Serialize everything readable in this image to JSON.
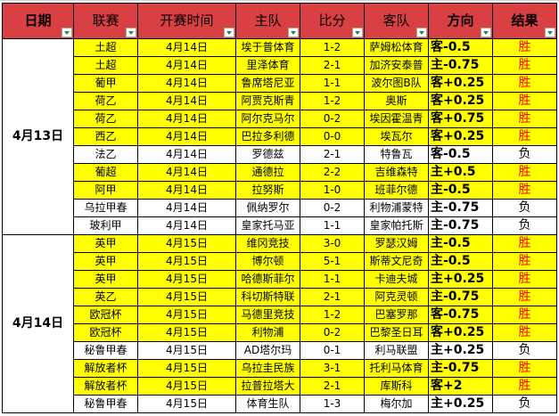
{
  "headers": [
    "日期",
    "联赛",
    "开赛时间",
    "主队",
    "比分",
    "客队",
    "方向",
    "结果"
  ],
  "colors": {
    "header": "#d94044",
    "highlight": "#ffff00",
    "win": "#ff0000"
  },
  "groups": [
    {
      "date": "4月13日",
      "rows": [
        {
          "league": "土超",
          "time": "4月14日",
          "home": "埃于普体育",
          "score": "1-2",
          "away": "萨姆松体育",
          "dir": "客-0.5",
          "result": "胜",
          "hl": true
        },
        {
          "league": "土超",
          "time": "4月14日",
          "home": "里泽体育",
          "score": "2-1",
          "away": "加济安泰普",
          "dir": "主-0.75",
          "result": "胜",
          "hl": true
        },
        {
          "league": "葡甲",
          "time": "4月14日",
          "home": "鲁席塔尼亚",
          "score": "1-1",
          "away": "波尔图B队",
          "dir": "客+0.25",
          "result": "胜",
          "hl": true
        },
        {
          "league": "荷乙",
          "time": "4月14日",
          "home": "阿贾克斯青",
          "score": "1-2",
          "away": "奥斯",
          "dir": "客+0.25",
          "result": "胜",
          "hl": true
        },
        {
          "league": "荷乙",
          "time": "4月14日",
          "home": "阿尔克马尔",
          "score": "0-2",
          "away": "埃因霍温青",
          "dir": "客+0.75",
          "result": "胜",
          "hl": true
        },
        {
          "league": "西乙",
          "time": "4月14日",
          "home": "巴拉多利德",
          "score": "0-0",
          "away": "埃瓦尔",
          "dir": "客+0.25",
          "result": "胜",
          "hl": true
        },
        {
          "league": "法乙",
          "time": "4月14日",
          "home": "罗德兹",
          "score": "2-1",
          "away": "特鲁瓦",
          "dir": "客-0.5",
          "result": "负",
          "hl": false
        },
        {
          "league": "葡超",
          "time": "4月14日",
          "home": "通德拉",
          "score": "2-2",
          "away": "吉维森特",
          "dir": "主+0.5",
          "result": "胜",
          "hl": true
        },
        {
          "league": "阿甲",
          "time": "4月14日",
          "home": "拉努斯",
          "score": "1-0",
          "away": "班菲尔德",
          "dir": "主-0.5",
          "result": "胜",
          "hl": true
        },
        {
          "league": "乌拉甲春",
          "time": "4月14日",
          "home": "佩纳罗尔",
          "score": "0-2",
          "away": "利物浦蒙特",
          "dir": "主-0.75",
          "result": "负",
          "hl": false
        },
        {
          "league": "玻利甲",
          "time": "4月14日",
          "home": "皇家托马亚",
          "score": "1-1",
          "away": "皇家帕托斯",
          "dir": "主-0.75",
          "result": "负",
          "hl": false
        }
      ]
    },
    {
      "date": "4月14日",
      "rows": [
        {
          "league": "英甲",
          "time": "4月15日",
          "home": "维冈竞技",
          "score": "3-0",
          "away": "罗瑟汉姆",
          "dir": "主-0.5",
          "result": "胜",
          "hl": true
        },
        {
          "league": "英甲",
          "time": "4月15日",
          "home": "博尔顿",
          "score": "5-1",
          "away": "斯蒂文尼奇",
          "dir": "主-0.5",
          "result": "胜",
          "hl": true
        },
        {
          "league": "英甲",
          "time": "4月15日",
          "home": "哈德斯菲尔",
          "score": "1-1",
          "away": "卡迪夫城",
          "dir": "主+0.25",
          "result": "胜",
          "hl": true
        },
        {
          "league": "英乙",
          "time": "4月15日",
          "home": "科切斯特联",
          "score": "2-1",
          "away": "阿克灵顿",
          "dir": "主-0.75",
          "result": "胜",
          "hl": true
        },
        {
          "league": "欧冠杯",
          "time": "4月15日",
          "home": "马德里竞技",
          "score": "1-2",
          "away": "巴塞罗那",
          "dir": "客-0.75",
          "result": "胜",
          "hl": true
        },
        {
          "league": "欧冠杯",
          "time": "4月15日",
          "home": "利物浦",
          "score": "0-2",
          "away": "巴黎圣日耳",
          "dir": "客+0.25",
          "result": "胜",
          "hl": true
        },
        {
          "league": "秘鲁甲春",
          "time": "4月15日",
          "home": "AD塔尔玛",
          "score": "0-1",
          "away": "利马联盟",
          "dir": "主+0.25",
          "result": "负",
          "hl": false
        },
        {
          "league": "解放者杯",
          "time": "4月15日",
          "home": "乌拉圭民族",
          "score": "3-1",
          "away": "托利马体育",
          "dir": "主-0.75",
          "result": "胜",
          "hl": true
        },
        {
          "league": "解放者杯",
          "time": "4月15日",
          "home": "拉普拉塔大",
          "score": "2-1",
          "away": "库斯科",
          "dir": "客+2",
          "result": "胜",
          "hl": true
        },
        {
          "league": "秘鲁甲春",
          "time": "4月15日",
          "home": "体育生队",
          "score": "1-3",
          "away": "梅尔加",
          "dir": "主+0.25",
          "result": "负",
          "hl": false
        }
      ]
    }
  ]
}
